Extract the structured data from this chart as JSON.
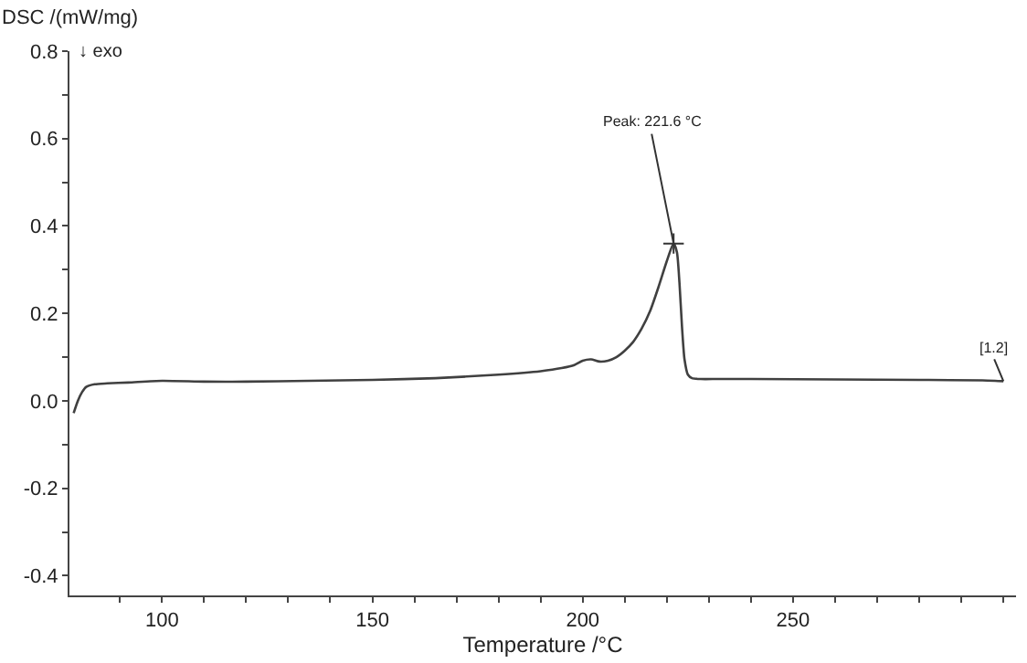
{
  "chart_data": {
    "type": "line",
    "ylabel": "DSC /(mW/mg)",
    "xlabel": "Temperature /°C",
    "x": [
      79,
      80,
      81,
      82,
      84,
      87,
      92,
      100,
      110,
      120,
      135,
      150,
      165,
      180,
      190,
      195,
      198,
      200,
      202,
      204,
      206,
      208,
      210,
      212,
      214,
      216,
      218,
      220,
      221.6,
      222.4,
      223,
      223.6,
      224.2,
      225,
      226,
      228,
      232,
      240,
      260,
      280,
      295,
      298,
      300
    ],
    "series": [
      {
        "color": "#404040",
        "values": [
          -0.028,
          0.0,
          0.02,
          0.032,
          0.038,
          0.04,
          0.042,
          0.046,
          0.044,
          0.044,
          0.046,
          0.048,
          0.052,
          0.06,
          0.068,
          0.075,
          0.082,
          0.092,
          0.095,
          0.09,
          0.092,
          0.1,
          0.115,
          0.135,
          0.165,
          0.205,
          0.26,
          0.32,
          0.36,
          0.34,
          0.27,
          0.17,
          0.095,
          0.06,
          0.052,
          0.05,
          0.05,
          0.05,
          0.049,
          0.048,
          0.047,
          0.046,
          0.045
        ]
      }
    ],
    "xlim": [
      78,
      303
    ],
    "ylim": [
      -0.445,
      0.8
    ],
    "xticks": [
      {
        "value": 90,
        "label": null
      },
      100,
      {
        "value": 110,
        "label": null
      },
      {
        "value": 120,
        "label": null
      },
      {
        "value": 130,
        "label": null
      },
      {
        "value": 140,
        "label": null
      },
      150,
      {
        "value": 160,
        "label": null
      },
      {
        "value": 170,
        "label": null
      },
      {
        "value": 180,
        "label": null
      },
      {
        "value": 190,
        "label": null
      },
      200,
      {
        "value": 210,
        "label": null
      },
      {
        "value": 220,
        "label": null
      },
      {
        "value": 230,
        "label": null
      },
      {
        "value": 240,
        "label": null
      },
      250,
      {
        "value": 260,
        "label": null
      },
      {
        "value": 270,
        "label": null
      },
      {
        "value": 280,
        "label": null
      },
      {
        "value": 290,
        "label": null
      },
      {
        "value": 300,
        "label": null
      }
    ],
    "yticks": [
      {
        "value": -0.4,
        "label": "-0.4"
      },
      {
        "value": -0.3,
        "label": null
      },
      {
        "value": -0.2,
        "label": "-0.2"
      },
      {
        "value": -0.1,
        "label": null
      },
      {
        "value": 0.0,
        "label": "0.0"
      },
      {
        "value": 0.1,
        "label": null
      },
      {
        "value": 0.2,
        "label": "0.2"
      },
      {
        "value": 0.3,
        "label": null
      },
      {
        "value": 0.4,
        "label": "0.4"
      },
      {
        "value": 0.5,
        "label": null
      },
      {
        "value": 0.6,
        "label": "0.6"
      },
      {
        "value": 0.7,
        "label": null
      },
      {
        "value": 0.8,
        "label": "0.8"
      }
    ],
    "annotations": [
      "↓ exo",
      {
        "text": "Peak: 221.6 °C",
        "x": 221.6,
        "y": 0.36
      },
      {
        "text": "[1.2]",
        "x": 300,
        "y": 0.045
      }
    ],
    "marker": "none",
    "line_style": "solid"
  }
}
